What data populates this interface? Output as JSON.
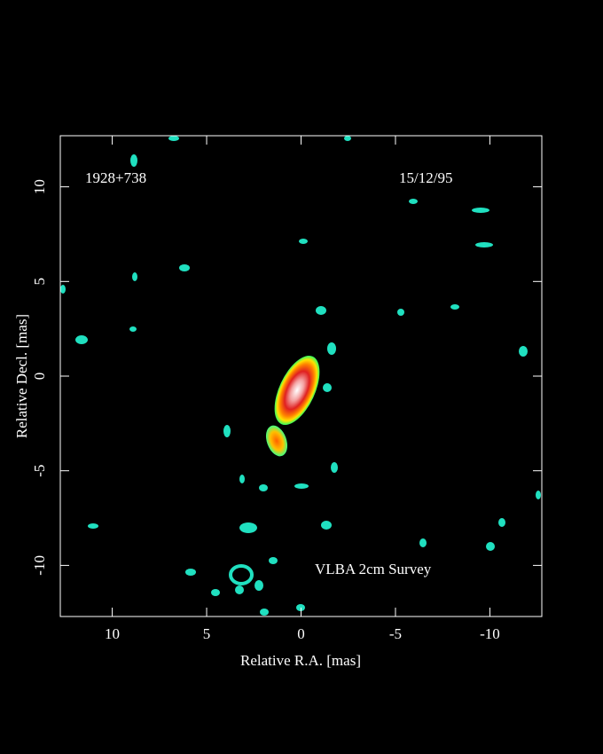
{
  "chart_data": {
    "type": "image",
    "source_label": "1928+738",
    "date_label": "15/12/95",
    "survey_label": "VLBA 2cm Survey",
    "x_label": "Relative R.A. [mas]",
    "y_label": "Relative Decl. [mas]",
    "xlim": [
      12.75,
      -12.75
    ],
    "ylim": [
      -12.7,
      12.7
    ],
    "xticks": [
      10,
      5,
      0,
      -5,
      -10
    ],
    "yticks": [
      -10,
      -5,
      0,
      5,
      10
    ]
  }
}
